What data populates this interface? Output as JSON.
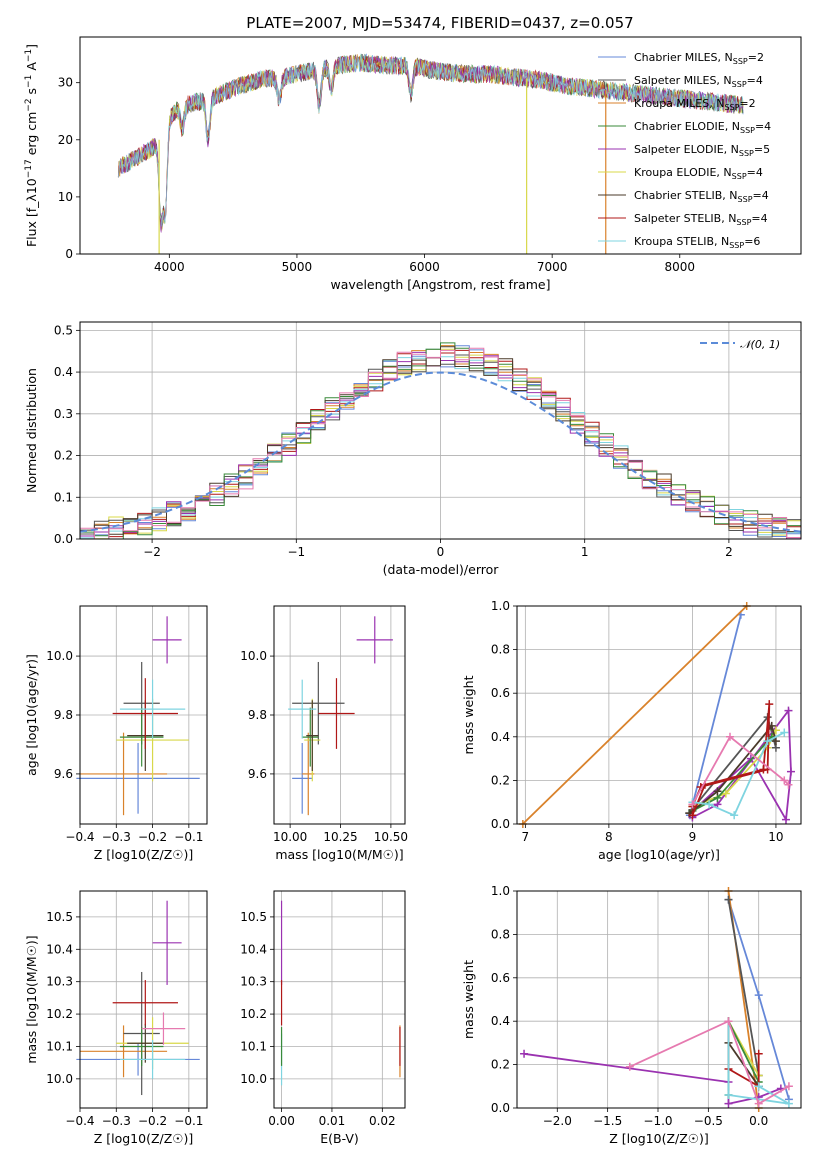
{
  "figure": {
    "title": "PLATE=2007, MJD=53474, FIBERID=0437, z=0.057"
  },
  "series": [
    {
      "name": "Chabrier MILES, N_SSP=2",
      "name_main": "Chabrier MILES, N",
      "name_sub": "SSP",
      "name_tail": "=2",
      "color": "#6688d8"
    },
    {
      "name": "Salpeter MILES, N_SSP=4",
      "name_main": "Salpeter MILES, N",
      "name_sub": "SSP",
      "name_tail": "=4",
      "color": "#555555"
    },
    {
      "name": "Kroupa MILES, N_SSP=2",
      "name_main": "Kroupa MILES, N",
      "name_sub": "SSP",
      "name_tail": "=2",
      "color": "#d9822b"
    },
    {
      "name": "Chabrier ELODIE, N_SSP=4",
      "name_main": "Chabrier ELODIE, N",
      "name_sub": "SSP",
      "name_tail": "=4",
      "color": "#3a8a3a"
    },
    {
      "name": "Salpeter ELODIE, N_SSP=5",
      "name_main": "Salpeter ELODIE, N",
      "name_sub": "SSP",
      "name_tail": "=5",
      "color": "#9a32b0"
    },
    {
      "name": "Kroupa ELODIE, N_SSP=4",
      "name_main": "Kroupa ELODIE, N",
      "name_sub": "SSP",
      "name_tail": "=4",
      "color": "#d8d84a"
    },
    {
      "name": "Chabrier STELIB, N_SSP=4",
      "name_main": "Chabrier STELIB, N",
      "name_sub": "SSP",
      "name_tail": "=4",
      "color": "#4a3a2a"
    },
    {
      "name": "Salpeter STELIB, N_SSP=4",
      "name_main": "Salpeter STELIB, N",
      "name_sub": "SSP",
      "name_tail": "=4",
      "color": "#b01818"
    },
    {
      "name": "Kroupa STELIB, N_SSP=6",
      "name_main": "Kroupa STELIB, N",
      "name_sub": "SSP",
      "name_tail": "=6",
      "color": "#7fd4e0"
    }
  ],
  "chart_data": [
    {
      "id": "spectrum",
      "type": "line",
      "xlabel": "wavelength [Angstrom, rest frame]",
      "ylabel": "Flux [f_λ10^-17 erg cm^-2 s^-1 A^-1]",
      "xlim": [
        3300,
        8950
      ],
      "ylim": [
        0,
        38
      ],
      "xticks": [
        4000,
        5000,
        6000,
        7000,
        8000
      ],
      "yticks": [
        0,
        10,
        20,
        30
      ],
      "grid": false,
      "legend": "top-right",
      "continuum": {
        "x": [
          3600,
          3750,
          3900,
          4000,
          4100,
          4300,
          4500,
          4700,
          4900,
          5100,
          5300,
          5500,
          5700,
          5900,
          6100,
          6300,
          6500,
          6700,
          6900,
          7100,
          7300,
          7500,
          7700,
          7900,
          8100,
          8300,
          8500
        ],
        "y": [
          15,
          17,
          19,
          24,
          26,
          27,
          29,
          30.5,
          31,
          32,
          33,
          33.5,
          33,
          33,
          32,
          31.5,
          31.5,
          31,
          30.5,
          29.5,
          29,
          28.5,
          28,
          27.5,
          27,
          26.5,
          26
        ]
      },
      "absorption_features": [
        {
          "x": 3934,
          "y": 6
        },
        {
          "x": 3969,
          "y": 8
        },
        {
          "x": 4102,
          "y": 22
        },
        {
          "x": 4304,
          "y": 20
        },
        {
          "x": 4861,
          "y": 27
        },
        {
          "x": 5175,
          "y": 26
        },
        {
          "x": 5270,
          "y": 29
        },
        {
          "x": 5893,
          "y": 28
        }
      ],
      "dropouts": [
        {
          "x": 3920,
          "series": "Kroupa ELODIE, N_SSP=4"
        },
        {
          "x": 6800,
          "series": "Kroupa ELODIE, N_SSP=4"
        },
        {
          "x": 7420,
          "series": "Kroupa MILES, N_SSP=2"
        }
      ]
    },
    {
      "id": "residuals",
      "type": "histogram",
      "xlabel": "(data-model)/error",
      "ylabel": "Normed distribution",
      "xlim": [
        -2.5,
        2.5
      ],
      "ylim": [
        0,
        0.52
      ],
      "xticks": [
        -2,
        -1,
        0,
        1,
        2
      ],
      "yticks": [
        0.0,
        0.1,
        0.2,
        0.3,
        0.4,
        0.5
      ],
      "grid": true,
      "legend": "top-right",
      "reference_curve": {
        "name": "N(0,1)",
        "label_main": "𝒩(0, 1)",
        "mean": 0,
        "sigma": 1
      },
      "bin_width": 0.1
    },
    {
      "id": "age_vs_Z",
      "type": "scatter",
      "xlabel": "Z [log10(Z/Z☉)]",
      "ylabel": "age [log10(age/yr)]",
      "xlim": [
        -0.4,
        -0.05
      ],
      "ylim": [
        9.43,
        10.17
      ],
      "xticks": [
        -0.4,
        -0.3,
        -0.2,
        -0.1
      ],
      "yticks": [
        9.6,
        9.8,
        10.0
      ],
      "grid": true,
      "points": [
        {
          "series": 0,
          "x": -0.24,
          "y": 9.585,
          "xerr": 0.17,
          "yerr": 0.12
        },
        {
          "series": 2,
          "x": -0.28,
          "y": 9.6,
          "xerr": 0.12,
          "yerr": 0.14
        },
        {
          "series": 1,
          "x": -0.23,
          "y": 9.84,
          "xerr": 0.05,
          "yerr": 0.14
        },
        {
          "series": 4,
          "x": -0.16,
          "y": 10.055,
          "xerr": 0.04,
          "yerr": 0.08
        },
        {
          "series": 5,
          "x": -0.2,
          "y": 9.715,
          "xerr": 0.1,
          "yerr": 0.14
        },
        {
          "series": 3,
          "x": -0.23,
          "y": 9.725,
          "xerr": 0.06,
          "yerr": 0.1
        },
        {
          "series": 6,
          "x": -0.22,
          "y": 9.73,
          "xerr": 0.05,
          "yerr": 0.12
        },
        {
          "series": 7,
          "x": -0.22,
          "y": 9.805,
          "xerr": 0.09,
          "yerr": 0.12
        },
        {
          "series": 8,
          "x": -0.2,
          "y": 9.82,
          "xerr": 0.09,
          "yerr": 0.1
        }
      ]
    },
    {
      "id": "age_vs_mass",
      "type": "scatter",
      "xlabel": "mass [log10(M/M☉)]",
      "ylabel": "",
      "xlim": [
        9.92,
        10.57
      ],
      "ylim": [
        9.43,
        10.17
      ],
      "xticks": [
        10.0,
        10.25,
        10.5
      ],
      "yticks": [
        9.6,
        9.8,
        10.0
      ],
      "grid": true,
      "points": [
        {
          "series": 0,
          "x": 10.06,
          "y": 9.585,
          "xerr": 0.05,
          "yerr": 0.12
        },
        {
          "series": 2,
          "x": 10.09,
          "y": 9.6,
          "xerr": 0.03,
          "yerr": 0.14
        },
        {
          "series": 1,
          "x": 10.14,
          "y": 9.84,
          "xerr": 0.13,
          "yerr": 0.14
        },
        {
          "series": 4,
          "x": 10.42,
          "y": 10.055,
          "xerr": 0.09,
          "yerr": 0.08
        },
        {
          "series": 5,
          "x": 10.11,
          "y": 9.715,
          "xerr": 0.04,
          "yerr": 0.14
        },
        {
          "series": 3,
          "x": 10.1,
          "y": 9.725,
          "xerr": 0.04,
          "yerr": 0.1
        },
        {
          "series": 6,
          "x": 10.11,
          "y": 9.73,
          "xerr": 0.03,
          "yerr": 0.12
        },
        {
          "series": 7,
          "x": 10.23,
          "y": 9.805,
          "xerr": 0.09,
          "yerr": 0.12
        },
        {
          "series": 8,
          "x": 10.06,
          "y": 9.82,
          "xerr": 0.07,
          "yerr": 0.1
        }
      ]
    },
    {
      "id": "massweight_vs_age",
      "type": "line",
      "xlabel": "age [log10(age/yr)]",
      "ylabel": "mass weight",
      "xlim": [
        6.9,
        10.3
      ],
      "ylim": [
        0,
        1
      ],
      "xticks": [
        7,
        8,
        9,
        10
      ],
      "yticks": [
        0.0,
        0.2,
        0.4,
        0.6,
        0.8,
        1.0
      ],
      "grid": true,
      "lines": [
        {
          "series": 0,
          "x": [
            8.97,
            9.58
          ],
          "y": [
            0.04,
            0.96
          ]
        },
        {
          "series": 2,
          "x": [
            6.97,
            9.65
          ],
          "y": [
            0.0,
            1.0
          ]
        },
        {
          "series": 1,
          "x": [
            8.96,
            9.9,
            10.0
          ],
          "y": [
            0.05,
            0.49,
            0.35
          ]
        },
        {
          "series": 4,
          "x": [
            9.0,
            9.3,
            10.15,
            10.18,
            10.12,
            9.7,
            9.0
          ],
          "y": [
            0.03,
            0.09,
            0.52,
            0.24,
            0.02,
            0.3,
            0.06
          ]
        },
        {
          "series": 5,
          "x": [
            9.0,
            9.4,
            9.9,
            10.0
          ],
          "y": [
            0.08,
            0.14,
            0.35,
            0.43
          ]
        },
        {
          "series": 3,
          "x": [
            9.0,
            9.3,
            9.9,
            9.95
          ],
          "y": [
            0.06,
            0.12,
            0.38,
            0.4
          ]
        },
        {
          "series": 6,
          "x": [
            8.97,
            9.3,
            9.95,
            10.0
          ],
          "y": [
            0.05,
            0.15,
            0.45,
            0.38
          ]
        },
        {
          "series": 7,
          "x": [
            9.0,
            9.15,
            9.85,
            9.92,
            9.9,
            9.1,
            9.0
          ],
          "y": [
            0.04,
            0.18,
            0.25,
            0.55,
            0.25,
            0.17,
            0.08
          ]
        },
        {
          "series": 8,
          "x": [
            9.0,
            9.2,
            9.5,
            9.9,
            10.1
          ],
          "y": [
            0.1,
            0.09,
            0.04,
            0.38,
            0.42
          ]
        }
      ],
      "pink_line": {
        "x": [
          9.0,
          9.45,
          10.1,
          10.15
        ],
        "y": [
          0.09,
          0.4,
          0.2,
          0.18
        ]
      }
    },
    {
      "id": "mass_vs_Z",
      "type": "scatter",
      "xlabel": "Z [log10(Z/Z☉)]",
      "ylabel": "mass [log10(M/M☉)]",
      "xlim": [
        -0.4,
        -0.05
      ],
      "ylim": [
        9.91,
        10.58
      ],
      "xticks": [
        -0.4,
        -0.3,
        -0.2,
        -0.1
      ],
      "yticks": [
        10.0,
        10.1,
        10.2,
        10.3,
        10.4,
        10.5
      ],
      "grid": true,
      "points": [
        {
          "series": 0,
          "x": -0.24,
          "y": 10.06,
          "xerr": 0.17,
          "yerr": 0.05
        },
        {
          "series": 2,
          "x": -0.28,
          "y": 10.085,
          "xerr": 0.12,
          "yerr": 0.08
        },
        {
          "series": 1,
          "x": -0.23,
          "y": 10.14,
          "xerr": 0.05,
          "yerr": 0.19
        },
        {
          "series": 4,
          "x": -0.16,
          "y": 10.42,
          "xerr": 0.04,
          "yerr": 0.13
        },
        {
          "series": 5,
          "x": -0.2,
          "y": 10.11,
          "xerr": 0.1,
          "yerr": 0.08
        },
        {
          "series": 3,
          "x": -0.23,
          "y": 10.1,
          "xerr": 0.06,
          "yerr": 0.06
        },
        {
          "series": 6,
          "x": -0.22,
          "y": 10.11,
          "xerr": 0.05,
          "yerr": 0.06
        },
        {
          "series": 7,
          "x": -0.22,
          "y": 10.235,
          "xerr": 0.09,
          "yerr": 0.07
        },
        {
          "series": 8,
          "x": -0.2,
          "y": 10.06,
          "xerr": 0.09,
          "yerr": 0.06
        }
      ],
      "pink_point": {
        "x": -0.17,
        "y": 10.155,
        "xerr": 0.06,
        "yerr": 0.05
      }
    },
    {
      "id": "mass_vs_EBV",
      "type": "scatter",
      "xlabel": "E(B-V)",
      "ylabel": "",
      "xlim": [
        -0.0015,
        0.0245
      ],
      "ylim": [
        9.91,
        10.58
      ],
      "xticks": [
        0.0,
        0.01,
        0.02
      ],
      "yticks": [
        10.0,
        10.1,
        10.2,
        10.3,
        10.4,
        10.5
      ],
      "grid": true,
      "points": [
        {
          "series": 4,
          "x": 0.0,
          "y": 10.42,
          "yerr": 0.13
        },
        {
          "series": 7,
          "x": 0.0,
          "y": 10.235,
          "yerr": 0.07
        },
        {
          "series": 8,
          "x": 0.0,
          "y": 10.06,
          "yerr": 0.08
        },
        {
          "series": 3,
          "x": 0.0,
          "y": 10.1,
          "yerr": 0.06
        },
        {
          "series": 2,
          "x": 0.0235,
          "y": 10.085,
          "yerr": 0.08
        },
        {
          "series": 7,
          "x": 0.0235,
          "y": 10.1,
          "yerr": 0.06
        }
      ]
    },
    {
      "id": "massweight_vs_Z",
      "type": "line",
      "xlabel": "Z [log10(Z/Z☉)]",
      "ylabel": "mass weight",
      "xlim": [
        -2.4,
        0.42
      ],
      "ylim": [
        0,
        1
      ],
      "xticks": [
        -2.0,
        -1.5,
        -1.0,
        -0.5,
        0.0
      ],
      "yticks": [
        0.0,
        0.2,
        0.4,
        0.6,
        0.8,
        1.0
      ],
      "grid": true,
      "lines": [
        {
          "series": 0,
          "x": [
            -0.3,
            0.0,
            0.3
          ],
          "y": [
            0.96,
            0.52,
            0.04
          ]
        },
        {
          "series": 2,
          "x": [
            -0.3,
            0.0
          ],
          "y": [
            1.0,
            0.0
          ]
        },
        {
          "series": 1,
          "x": [
            -0.3,
            0.0
          ],
          "y": [
            0.96,
            0.15
          ]
        },
        {
          "series": 4,
          "x": [
            -2.33,
            -0.3,
            -0.3,
            0.0,
            0.22
          ],
          "y": [
            0.25,
            0.12,
            0.02,
            0.05,
            0.09
          ]
        },
        {
          "series": 5,
          "x": [
            -0.3,
            0.0
          ],
          "y": [
            0.4,
            0.15
          ]
        },
        {
          "series": 3,
          "x": [
            -0.3,
            -0.3,
            0.0
          ],
          "y": [
            0.06,
            0.4,
            0.12
          ]
        },
        {
          "series": 6,
          "x": [
            -0.3,
            0.0
          ],
          "y": [
            0.3,
            0.1
          ]
        },
        {
          "series": 7,
          "x": [
            -0.3,
            -0.3,
            0.0,
            0.0
          ],
          "y": [
            0.4,
            0.18,
            0.1,
            0.25
          ]
        },
        {
          "series": 8,
          "x": [
            -0.3,
            -0.3,
            0.3,
            0.0
          ],
          "y": [
            0.4,
            0.06,
            0.02,
            0.1
          ]
        }
      ],
      "pink_line": {
        "x": [
          -1.28,
          -0.3,
          0.0,
          0.3
        ],
        "y": [
          0.19,
          0.4,
          0.02,
          0.1
        ]
      }
    }
  ]
}
